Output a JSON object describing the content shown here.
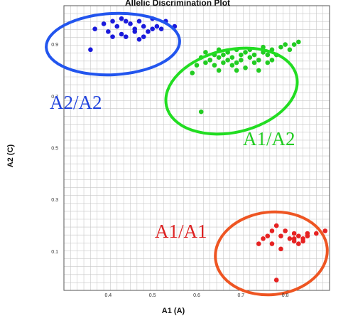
{
  "chart_data": {
    "type": "scatter",
    "title": "Allelic Discrimination Plot",
    "xlabel": "A1 (A)",
    "ylabel": "A2 (C)",
    "xlim": [
      0.3,
      0.9
    ],
    "ylim": [
      -0.05,
      1.05
    ],
    "xticks": [
      {
        "value": 0.4,
        "label": "0.4"
      },
      {
        "value": 0.5,
        "label": "0.5"
      },
      {
        "value": 0.6,
        "label": "0.6"
      },
      {
        "value": 0.7,
        "label": "0.7"
      },
      {
        "value": 0.8,
        "label": "0.8"
      }
    ],
    "yticks": [
      {
        "value": 0.1,
        "label": "0.1"
      },
      {
        "value": 0.3,
        "label": "0.3"
      },
      {
        "value": 0.5,
        "label": "0.5"
      },
      {
        "value": 0.7,
        "label": "0.7"
      },
      {
        "value": 0.9,
        "label": "0.9"
      }
    ],
    "grid": true,
    "series": [
      {
        "name": "A2/A2",
        "color": "#1a1adc",
        "x": [
          0.36,
          0.39,
          0.41,
          0.42,
          0.43,
          0.44,
          0.45,
          0.46,
          0.47,
          0.48,
          0.49,
          0.5,
          0.51,
          0.53,
          0.55,
          0.4,
          0.43,
          0.46,
          0.48,
          0.5,
          0.44,
          0.52,
          0.37,
          0.41,
          0.47
        ],
        "y": [
          0.88,
          0.98,
          0.99,
          0.97,
          1.0,
          0.99,
          0.98,
          0.96,
          0.99,
          0.97,
          0.95,
          1.0,
          0.97,
          0.99,
          0.97,
          0.95,
          0.94,
          0.95,
          0.93,
          0.96,
          0.93,
          0.96,
          0.96,
          0.93,
          0.92
        ]
      },
      {
        "name": "A1/A2",
        "color": "#22cc22",
        "x": [
          0.59,
          0.6,
          0.61,
          0.62,
          0.62,
          0.63,
          0.64,
          0.64,
          0.65,
          0.65,
          0.66,
          0.66,
          0.67,
          0.67,
          0.68,
          0.68,
          0.69,
          0.69,
          0.7,
          0.7,
          0.71,
          0.71,
          0.72,
          0.72,
          0.73,
          0.73,
          0.74,
          0.75,
          0.75,
          0.76,
          0.76,
          0.77,
          0.78,
          0.79,
          0.8,
          0.81,
          0.82,
          0.83,
          0.77,
          0.74,
          0.69,
          0.65,
          0.63,
          0.61
        ],
        "y": [
          0.79,
          0.82,
          0.85,
          0.83,
          0.87,
          0.84,
          0.86,
          0.82,
          0.85,
          0.88,
          0.83,
          0.86,
          0.84,
          0.87,
          0.82,
          0.85,
          0.83,
          0.88,
          0.86,
          0.84,
          0.87,
          0.81,
          0.85,
          0.88,
          0.83,
          0.86,
          0.84,
          0.87,
          0.89,
          0.86,
          0.83,
          0.88,
          0.86,
          0.89,
          0.9,
          0.88,
          0.9,
          0.91,
          0.84,
          0.8,
          0.8,
          0.8,
          0.84,
          0.64
        ]
      },
      {
        "name": "A1/A1",
        "color": "#e62222",
        "x": [
          0.74,
          0.75,
          0.76,
          0.77,
          0.78,
          0.79,
          0.8,
          0.81,
          0.82,
          0.82,
          0.83,
          0.83,
          0.84,
          0.84,
          0.85,
          0.85,
          0.87,
          0.89,
          0.77,
          0.79,
          0.82,
          0.78
        ],
        "y": [
          0.13,
          0.15,
          0.16,
          0.13,
          0.2,
          0.16,
          0.18,
          0.15,
          0.17,
          0.14,
          0.16,
          0.13,
          0.15,
          0.14,
          0.17,
          0.16,
          0.17,
          0.18,
          0.18,
          0.11,
          0.15,
          -0.01
        ]
      }
    ],
    "annotations": [
      {
        "text": "A2/A2",
        "color": "#2244dd"
      },
      {
        "text": "A1/A2",
        "color": "#22cc22"
      },
      {
        "text": "A1/A1",
        "color": "#dd2222"
      }
    ],
    "outline_colors": {
      "A2/A2": "#2255ee",
      "A1/A2": "#22dd22",
      "A1/A1": "#ee5522"
    }
  }
}
